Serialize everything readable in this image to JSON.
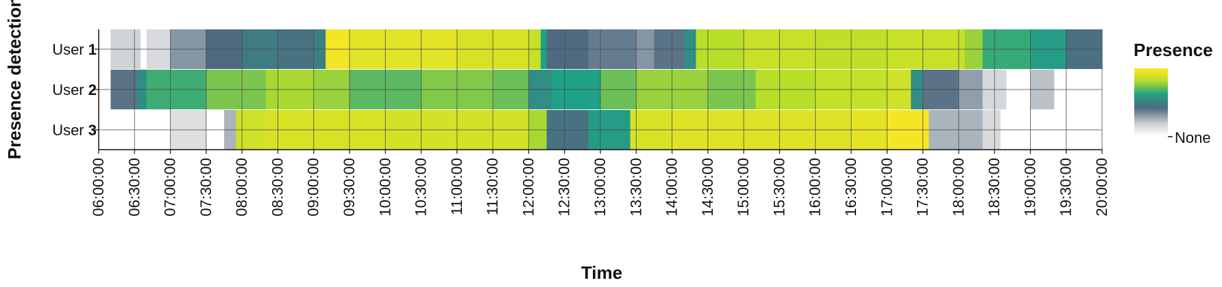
{
  "chart_data": {
    "type": "heatmap",
    "xlabel": "Time",
    "ylabel": "Presence detection",
    "x_range": [
      "06:00:00",
      "20:00:00"
    ],
    "x_ticks": [
      "06:00:00",
      "06:30:00",
      "07:00:00",
      "07:30:00",
      "08:00:00",
      "08:30:00",
      "09:00:00",
      "09:30:00",
      "10:00:00",
      "10:30:00",
      "11:00:00",
      "11:30:00",
      "12:00:00",
      "12:30:00",
      "13:00:00",
      "13:30:00",
      "14:00:00",
      "14:30:00",
      "15:00:00",
      "15:30:00",
      "16:00:00",
      "16:30:00",
      "17:00:00",
      "17:30:00",
      "18:00:00",
      "18:30:00",
      "19:00:00",
      "19:30:00",
      "20:00:00"
    ],
    "grid": true,
    "legend": {
      "title": "Presence",
      "min_label": "None",
      "position": "right"
    },
    "colorscale": [
      "#ffffff",
      "#d0d3d6",
      "#4f6a80",
      "#1fa187",
      "#b8de29",
      "#fde725"
    ],
    "series": [
      {
        "prefix": "User ",
        "id": "1",
        "segments": [
          {
            "start": "06:00:00",
            "end": "06:10:00",
            "value": 0
          },
          {
            "start": "06:10:00",
            "end": "06:35:00",
            "value": 0.18
          },
          {
            "start": "06:35:00",
            "end": "06:40:00",
            "value": 0
          },
          {
            "start": "06:40:00",
            "end": "07:00:00",
            "value": 0.15
          },
          {
            "start": "07:00:00",
            "end": "07:30:00",
            "value": 0.32
          },
          {
            "start": "07:30:00",
            "end": "08:00:00",
            "value": 0.42
          },
          {
            "start": "08:00:00",
            "end": "08:30:00",
            "value": 0.48
          },
          {
            "start": "08:30:00",
            "end": "09:00:00",
            "value": 0.45
          },
          {
            "start": "09:00:00",
            "end": "09:10:00",
            "value": 0.5
          },
          {
            "start": "09:10:00",
            "end": "09:30:00",
            "value": 0.97
          },
          {
            "start": "09:30:00",
            "end": "11:00:00",
            "value": 0.93
          },
          {
            "start": "11:00:00",
            "end": "12:00:00",
            "value": 0.9
          },
          {
            "start": "12:00:00",
            "end": "12:10:00",
            "value": 0.85
          },
          {
            "start": "12:10:00",
            "end": "12:15:00",
            "value": 0.62
          },
          {
            "start": "12:15:00",
            "end": "12:50:00",
            "value": 0.42
          },
          {
            "start": "12:50:00",
            "end": "13:30:00",
            "value": 0.38
          },
          {
            "start": "13:30:00",
            "end": "13:45:00",
            "value": 0.32
          },
          {
            "start": "13:45:00",
            "end": "14:10:00",
            "value": 0.4
          },
          {
            "start": "14:10:00",
            "end": "14:20:00",
            "value": 0.55
          },
          {
            "start": "14:20:00",
            "end": "15:00:00",
            "value": 0.82
          },
          {
            "start": "15:00:00",
            "end": "16:00:00",
            "value": 0.86
          },
          {
            "start": "16:00:00",
            "end": "17:00:00",
            "value": 0.84
          },
          {
            "start": "17:00:00",
            "end": "18:05:00",
            "value": 0.86
          },
          {
            "start": "18:05:00",
            "end": "18:20:00",
            "value": 0.78
          },
          {
            "start": "18:20:00",
            "end": "19:00:00",
            "value": 0.65
          },
          {
            "start": "19:00:00",
            "end": "19:30:00",
            "value": 0.6
          },
          {
            "start": "19:30:00",
            "end": "20:00:00",
            "value": 0.44
          }
        ]
      },
      {
        "prefix": "User ",
        "id": "2",
        "segments": [
          {
            "start": "06:00:00",
            "end": "06:10:00",
            "value": 0
          },
          {
            "start": "06:10:00",
            "end": "06:32:00",
            "value": 0.4
          },
          {
            "start": "06:32:00",
            "end": "06:40:00",
            "value": 0.55
          },
          {
            "start": "06:40:00",
            "end": "07:30:00",
            "value": 0.66
          },
          {
            "start": "07:30:00",
            "end": "08:20:00",
            "value": 0.74
          },
          {
            "start": "08:20:00",
            "end": "09:00:00",
            "value": 0.8
          },
          {
            "start": "09:00:00",
            "end": "09:30:00",
            "value": 0.78
          },
          {
            "start": "09:30:00",
            "end": "10:30:00",
            "value": 0.7
          },
          {
            "start": "10:30:00",
            "end": "11:30:00",
            "value": 0.75
          },
          {
            "start": "11:30:00",
            "end": "12:00:00",
            "value": 0.72
          },
          {
            "start": "12:00:00",
            "end": "12:20:00",
            "value": 0.55
          },
          {
            "start": "12:20:00",
            "end": "13:00:00",
            "value": 0.62
          },
          {
            "start": "13:00:00",
            "end": "13:30:00",
            "value": 0.72
          },
          {
            "start": "13:30:00",
            "end": "14:30:00",
            "value": 0.78
          },
          {
            "start": "14:30:00",
            "end": "15:10:00",
            "value": 0.74
          },
          {
            "start": "15:10:00",
            "end": "16:00:00",
            "value": 0.82
          },
          {
            "start": "16:00:00",
            "end": "17:00:00",
            "value": 0.85
          },
          {
            "start": "17:00:00",
            "end": "17:20:00",
            "value": 0.88
          },
          {
            "start": "17:20:00",
            "end": "17:30:00",
            "value": 0.55
          },
          {
            "start": "17:30:00",
            "end": "18:00:00",
            "value": 0.4
          },
          {
            "start": "18:00:00",
            "end": "18:20:00",
            "value": 0.3
          },
          {
            "start": "18:20:00",
            "end": "18:40:00",
            "value": 0.16
          },
          {
            "start": "18:40:00",
            "end": "19:00:00",
            "value": 0
          },
          {
            "start": "19:00:00",
            "end": "19:20:00",
            "value": 0.22
          },
          {
            "start": "19:20:00",
            "end": "20:00:00",
            "value": 0
          }
        ]
      },
      {
        "prefix": "User ",
        "id": "3",
        "segments": [
          {
            "start": "06:00:00",
            "end": "07:00:00",
            "value": 0
          },
          {
            "start": "07:00:00",
            "end": "07:30:00",
            "value": 0.13
          },
          {
            "start": "07:30:00",
            "end": "07:45:00",
            "value": 0
          },
          {
            "start": "07:45:00",
            "end": "07:55:00",
            "value": 0.25
          },
          {
            "start": "07:55:00",
            "end": "08:20:00",
            "value": 0.88
          },
          {
            "start": "08:20:00",
            "end": "10:00:00",
            "value": 0.9
          },
          {
            "start": "10:00:00",
            "end": "12:00:00",
            "value": 0.89
          },
          {
            "start": "12:00:00",
            "end": "12:15:00",
            "value": 0.8
          },
          {
            "start": "12:15:00",
            "end": "12:50:00",
            "value": 0.45
          },
          {
            "start": "12:50:00",
            "end": "13:25:00",
            "value": 0.6
          },
          {
            "start": "13:25:00",
            "end": "14:00:00",
            "value": 0.9
          },
          {
            "start": "14:00:00",
            "end": "16:30:00",
            "value": 0.92
          },
          {
            "start": "16:30:00",
            "end": "17:00:00",
            "value": 0.94
          },
          {
            "start": "17:00:00",
            "end": "17:35:00",
            "value": 0.98
          },
          {
            "start": "17:35:00",
            "end": "18:20:00",
            "value": 0.25
          },
          {
            "start": "18:20:00",
            "end": "18:35:00",
            "value": 0.15
          },
          {
            "start": "18:35:00",
            "end": "20:00:00",
            "value": 0
          }
        ]
      }
    ]
  }
}
